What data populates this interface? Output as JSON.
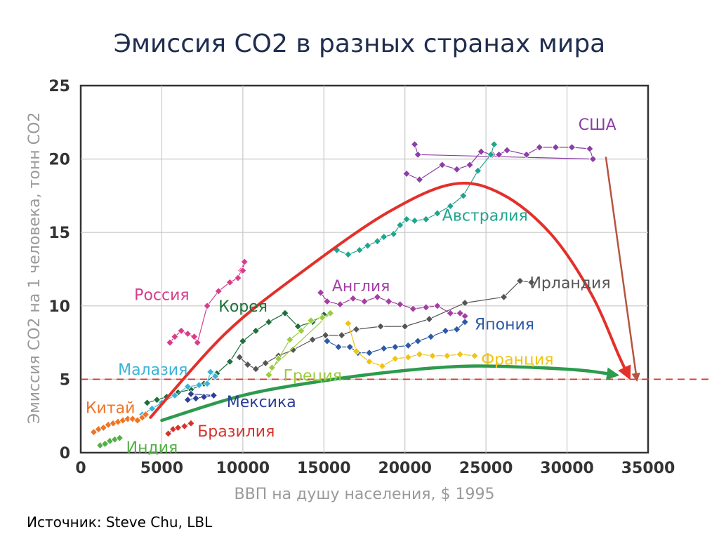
{
  "page": {
    "title": "Эмиссия CO2 в разных странах мира",
    "source": "Источник: Steve Chu, LBL"
  },
  "chart_data": {
    "type": "scatter",
    "title": "Эмиссия CO2 в разных странах мира",
    "xlabel": "ВВП на душу населения, $ 1995",
    "ylabel": "Эмиссия CO2 на 1 человека, тонн CO2",
    "xlim": [
      0,
      35000
    ],
    "ylim": [
      0,
      25
    ],
    "x_ticks": [
      0,
      5000,
      10000,
      15000,
      20000,
      25000,
      30000,
      35000
    ],
    "y_ticks": [
      0,
      5,
      10,
      15,
      20,
      25
    ],
    "x_tick_labels": [
      "0",
      "5000",
      "10000",
      "15000",
      "20000",
      "25000",
      "30000",
      "35000"
    ],
    "y_tick_labels": [
      "0",
      "5",
      "10",
      "15",
      "20",
      "25"
    ],
    "grid": true,
    "reference_line": {
      "y": 5,
      "style": "dashed",
      "color": "#d9342b"
    },
    "series": [
      {
        "name": "США",
        "color": "#8a3fa6",
        "points": [
          [
            20100,
            19.0
          ],
          [
            20900,
            18.6
          ],
          [
            22300,
            19.6
          ],
          [
            23200,
            19.3
          ],
          [
            24000,
            19.6
          ],
          [
            24700,
            20.5
          ],
          [
            25400,
            20.3
          ],
          [
            25800,
            20.3
          ],
          [
            26300,
            20.6
          ],
          [
            27500,
            20.3
          ],
          [
            28300,
            20.8
          ],
          [
            29300,
            20.8
          ],
          [
            30300,
            20.8
          ],
          [
            31400,
            20.7
          ],
          [
            31600,
            20.0
          ],
          [
            20800,
            20.3
          ],
          [
            20600,
            21.0
          ]
        ],
        "label_pos": [
          30700,
          22.0
        ]
      },
      {
        "name": "Австралия",
        "color": "#1fa58e",
        "points": [
          [
            15800,
            13.8
          ],
          [
            16500,
            13.5
          ],
          [
            17200,
            13.8
          ],
          [
            17700,
            14.1
          ],
          [
            18300,
            14.4
          ],
          [
            18700,
            14.7
          ],
          [
            19300,
            14.9
          ],
          [
            19700,
            15.5
          ],
          [
            20100,
            15.9
          ],
          [
            20600,
            15.8
          ],
          [
            21300,
            15.9
          ],
          [
            22000,
            16.3
          ],
          [
            22800,
            16.8
          ],
          [
            23600,
            17.5
          ],
          [
            24500,
            19.2
          ],
          [
            25300,
            20.3
          ],
          [
            25500,
            21.0
          ]
        ],
        "label_pos": [
          22300,
          15.8
        ]
      },
      {
        "name": "Англия",
        "color": "#a23fa3",
        "points": [
          [
            14800,
            10.9
          ],
          [
            15200,
            10.3
          ],
          [
            16000,
            10.1
          ],
          [
            16800,
            10.5
          ],
          [
            17500,
            10.3
          ],
          [
            18300,
            10.6
          ],
          [
            19000,
            10.3
          ],
          [
            19700,
            10.1
          ],
          [
            20500,
            9.8
          ],
          [
            21300,
            9.9
          ],
          [
            22000,
            10.0
          ],
          [
            22800,
            9.5
          ],
          [
            23400,
            9.5
          ],
          [
            23700,
            9.3
          ]
        ],
        "label_pos": [
          15500,
          11.0
        ]
      },
      {
        "name": "Ирландия",
        "color": "#555555",
        "points": [
          [
            9800,
            6.5
          ],
          [
            10300,
            6.0
          ],
          [
            10800,
            5.7
          ],
          [
            11400,
            6.1
          ],
          [
            12200,
            6.6
          ],
          [
            13100,
            7.0
          ],
          [
            14300,
            7.7
          ],
          [
            15100,
            8.0
          ],
          [
            16100,
            8.0
          ],
          [
            17000,
            8.4
          ],
          [
            18500,
            8.6
          ],
          [
            20000,
            8.6
          ],
          [
            21500,
            9.1
          ],
          [
            23700,
            10.2
          ],
          [
            26100,
            10.6
          ],
          [
            27100,
            11.7
          ],
          [
            27800,
            11.6
          ]
        ],
        "label_pos": [
          27700,
          11.2
        ]
      },
      {
        "name": "Япония",
        "color": "#2b5aa6",
        "points": [
          [
            15200,
            7.6
          ],
          [
            15900,
            7.2
          ],
          [
            16600,
            7.2
          ],
          [
            17100,
            6.8
          ],
          [
            17800,
            6.8
          ],
          [
            18700,
            7.1
          ],
          [
            19400,
            7.2
          ],
          [
            20200,
            7.3
          ],
          [
            20800,
            7.6
          ],
          [
            21600,
            7.9
          ],
          [
            22500,
            8.3
          ],
          [
            23200,
            8.4
          ],
          [
            23700,
            8.9
          ]
        ],
        "label_pos": [
          24300,
          8.4
        ]
      },
      {
        "name": "Франция",
        "color": "#f0c414",
        "points": [
          [
            16500,
            8.8
          ],
          [
            17000,
            6.9
          ],
          [
            17800,
            6.2
          ],
          [
            18600,
            5.9
          ],
          [
            19400,
            6.4
          ],
          [
            20200,
            6.5
          ],
          [
            20900,
            6.7
          ],
          [
            21700,
            6.6
          ],
          [
            22600,
            6.6
          ],
          [
            23400,
            6.7
          ],
          [
            24300,
            6.6
          ]
        ],
        "label_pos": [
          24700,
          6.0
        ]
      },
      {
        "name": "Корея",
        "color": "#1e6f3a",
        "points": [
          [
            4100,
            3.4
          ],
          [
            4700,
            3.6
          ],
          [
            5300,
            3.8
          ],
          [
            6000,
            4.1
          ],
          [
            6800,
            4.3
          ],
          [
            7600,
            4.7
          ],
          [
            8400,
            5.4
          ],
          [
            9200,
            6.2
          ],
          [
            10000,
            7.6
          ],
          [
            10800,
            8.3
          ],
          [
            11600,
            8.9
          ],
          [
            12600,
            9.5
          ],
          [
            13400,
            8.6
          ],
          [
            14300,
            8.9
          ],
          [
            15000,
            9.4
          ]
        ],
        "label_pos": [
          8500,
          9.6
        ]
      },
      {
        "name": "Греция",
        "color": "#9ccc40",
        "points": [
          [
            11600,
            5.3
          ],
          [
            12200,
            6.4
          ],
          [
            12900,
            7.7
          ],
          [
            13600,
            8.3
          ],
          [
            14200,
            9.0
          ],
          [
            14900,
            9.2
          ],
          [
            15400,
            9.5
          ],
          [
            11800,
            5.8
          ]
        ],
        "label_pos": [
          12500,
          4.9
        ]
      },
      {
        "name": "Россия",
        "color": "#d83d8c",
        "points": [
          [
            5500,
            7.5
          ],
          [
            5800,
            7.9
          ],
          [
            6200,
            8.3
          ],
          [
            6600,
            8.1
          ],
          [
            7000,
            7.9
          ],
          [
            7200,
            7.5
          ],
          [
            7800,
            10.0
          ],
          [
            8500,
            11.0
          ],
          [
            9200,
            11.6
          ],
          [
            9700,
            11.9
          ],
          [
            9900,
            12.4
          ],
          [
            10100,
            13.0
          ],
          [
            10000,
            12.4
          ]
        ],
        "label_pos": [
          3300,
          10.4
        ]
      },
      {
        "name": "Малазия",
        "color": "#3ab3d8",
        "points": [
          [
            3800,
            2.6
          ],
          [
            4400,
            3.0
          ],
          [
            5000,
            3.4
          ],
          [
            5800,
            3.9
          ],
          [
            6600,
            4.5
          ],
          [
            7300,
            4.6
          ],
          [
            7800,
            4.7
          ],
          [
            8000,
            5.5
          ],
          [
            8300,
            5.2
          ]
        ],
        "label_pos": [
          2300,
          5.3
        ]
      },
      {
        "name": "Мексика",
        "color": "#2d3f9a",
        "points": [
          [
            6600,
            3.6
          ],
          [
            7100,
            3.7
          ],
          [
            7600,
            3.8
          ],
          [
            8200,
            3.9
          ],
          [
            6800,
            4.0
          ]
        ],
        "label_pos": [
          9000,
          3.1
        ]
      },
      {
        "name": "Китай",
        "color": "#f07424",
        "points": [
          [
            800,
            1.4
          ],
          [
            1100,
            1.6
          ],
          [
            1400,
            1.7
          ],
          [
            1700,
            1.9
          ],
          [
            2000,
            2.0
          ],
          [
            2300,
            2.1
          ],
          [
            2600,
            2.2
          ],
          [
            2900,
            2.3
          ],
          [
            3200,
            2.3
          ],
          [
            3500,
            2.2
          ],
          [
            3800,
            2.4
          ],
          [
            4000,
            2.6
          ]
        ],
        "label_pos": [
          300,
          2.7
        ]
      },
      {
        "name": "Бразилия",
        "color": "#d4342c",
        "points": [
          [
            5400,
            1.3
          ],
          [
            5700,
            1.6
          ],
          [
            6000,
            1.7
          ],
          [
            6400,
            1.8
          ],
          [
            6800,
            2.0
          ]
        ],
        "label_pos": [
          7200,
          1.1
        ]
      },
      {
        "name": "Индия",
        "color": "#53b044",
        "points": [
          [
            1200,
            0.5
          ],
          [
            1500,
            0.6
          ],
          [
            1800,
            0.8
          ],
          [
            2100,
            0.9
          ],
          [
            2400,
            1.0
          ]
        ],
        "label_pos": [
          2800,
          0.0
        ]
      }
    ],
    "annotations": [
      {
        "name": "red-curve-arrow",
        "color": "#e3302a",
        "path": [
          [
            4300,
            2.4
          ],
          [
            9000,
            8.2
          ],
          [
            14000,
            12.6
          ],
          [
            19000,
            16.4
          ],
          [
            23000,
            18.3
          ],
          [
            26000,
            17.6
          ],
          [
            29000,
            14.9
          ],
          [
            31500,
            10.8
          ],
          [
            33200,
            6.6
          ],
          [
            33800,
            5.2
          ]
        ]
      },
      {
        "name": "green-curve-arrow",
        "color": "#2d9a4e",
        "path": [
          [
            5000,
            2.2
          ],
          [
            10000,
            3.9
          ],
          [
            15000,
            4.9
          ],
          [
            20000,
            5.6
          ],
          [
            24000,
            5.9
          ],
          [
            28000,
            5.8
          ],
          [
            31000,
            5.6
          ],
          [
            33000,
            5.3
          ]
        ]
      },
      {
        "name": "brown-straight-arrow",
        "color": "#b5543f",
        "path": [
          [
            32400,
            20.1
          ],
          [
            34300,
            5.0
          ]
        ]
      }
    ]
  }
}
